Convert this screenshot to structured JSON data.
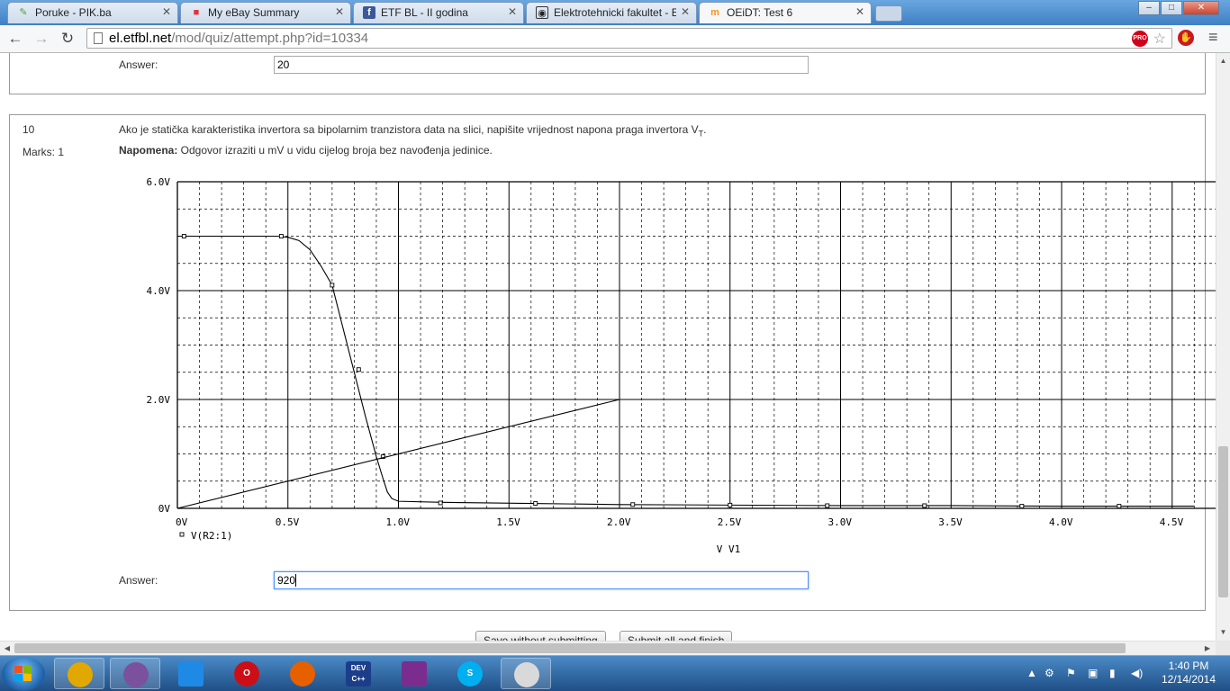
{
  "browser": {
    "tabs": [
      {
        "title": "Poruke - PIK.ba",
        "icon": "pik-icon",
        "active": false
      },
      {
        "title": "My eBay Summary",
        "icon": "ebay-icon",
        "active": false
      },
      {
        "title": "ETF BL - II godina",
        "icon": "facebook-icon",
        "active": false
      },
      {
        "title": "Elektrotehnicki fakultet - E",
        "icon": "etf-icon",
        "active": false
      },
      {
        "title": "OEiDT: Test 6",
        "icon": "moodle-icon",
        "active": true
      }
    ],
    "url_host": "el.etfbl.net",
    "url_path": "/mod/quiz/attempt.php?id=10334",
    "window_controls": {
      "minimize": "–",
      "maximize": "□",
      "close": "✕"
    }
  },
  "previous_question": {
    "answer_label": "Answer:",
    "answer_value": "20"
  },
  "question": {
    "number": "10",
    "marks": "Marks: 1",
    "text_before_sub": "Ako je statička karakteristika invertora sa bipolarnim tranzistora data na slici, napišite vrijednost napona praga invertora V",
    "text_sub": "T",
    "text_after_sub": ".",
    "note_label": "Napomena:",
    "note_text": " Odgovor izraziti u mV u vidu cijelog broja bez navođenja jedinice.",
    "answer_label": "Answer:",
    "answer_value": "920"
  },
  "buttons": {
    "save": "Save without submitting",
    "submit": "Submit all and finish"
  },
  "chart_data": {
    "type": "line",
    "xlabel": "V_V1",
    "ylabel": "",
    "xlim": [
      0,
      4.6
    ],
    "ylim": [
      0,
      6
    ],
    "x_tick_labels": [
      "0V",
      "0.5V",
      "1.0V",
      "1.5V",
      "2.0V",
      "2.5V",
      "3.0V",
      "3.5V",
      "4.0V",
      "4.5V"
    ],
    "x_tick_values": [
      0,
      0.5,
      1.0,
      1.5,
      2.0,
      2.5,
      3.0,
      3.5,
      4.0,
      4.5
    ],
    "y_tick_labels": [
      "0V",
      "2.0V",
      "4.0V",
      "6.0V"
    ],
    "y_tick_values": [
      0,
      2,
      4,
      6
    ],
    "grid": true,
    "legend_placement": "bottom-left",
    "series": [
      {
        "name": "V(R2:1)",
        "marker": "square",
        "x": [
          0,
          0.45,
          0.5,
          0.55,
          0.6,
          0.65,
          0.7,
          0.8,
          0.85,
          0.9,
          0.93,
          0.95,
          0.97,
          1.0,
          1.2,
          1.4,
          1.6,
          2.0,
          2.5,
          3.0,
          3.5,
          4.0,
          4.6
        ],
        "y": [
          5.0,
          5.0,
          4.98,
          4.92,
          4.75,
          4.45,
          4.1,
          2.5,
          1.7,
          0.95,
          0.55,
          0.3,
          0.18,
          0.13,
          0.11,
          0.1,
          0.09,
          0.07,
          0.06,
          0.05,
          0.05,
          0.04,
          0.04
        ],
        "marker_x": [
          0.03,
          0.47,
          0.7,
          0.82,
          0.93,
          1.19,
          1.62,
          2.06,
          2.5,
          2.94,
          3.38,
          3.82,
          4.26
        ],
        "marker_y": [
          5.0,
          5.0,
          4.1,
          2.55,
          0.95,
          0.1,
          0.09,
          0.07,
          0.06,
          0.05,
          0.05,
          0.04,
          0.04
        ]
      },
      {
        "name": "",
        "x": [
          0,
          2.0
        ],
        "y": [
          0,
          2.0
        ]
      }
    ]
  },
  "taskbar": {
    "apps": [
      {
        "name": "chrome",
        "label": "",
        "color": "#e0a800"
      },
      {
        "name": "viber",
        "label": "",
        "color": "#7b519d"
      },
      {
        "name": "dropbox",
        "label": "",
        "color": "#1f8ae6"
      },
      {
        "name": "opera",
        "label": "O",
        "color": "#cc0f16"
      },
      {
        "name": "firefox",
        "label": "",
        "color": "#e66000"
      },
      {
        "name": "devcpp",
        "label": "DEV C++",
        "color": "#1c3d8a"
      },
      {
        "name": "winrar",
        "label": "",
        "color": "#7a2d8f"
      },
      {
        "name": "skype",
        "label": "S",
        "color": "#00aff0"
      },
      {
        "name": "paint",
        "label": "",
        "color": "#d9d9d9"
      }
    ],
    "time": "1:40 PM",
    "date": "12/14/2014"
  }
}
